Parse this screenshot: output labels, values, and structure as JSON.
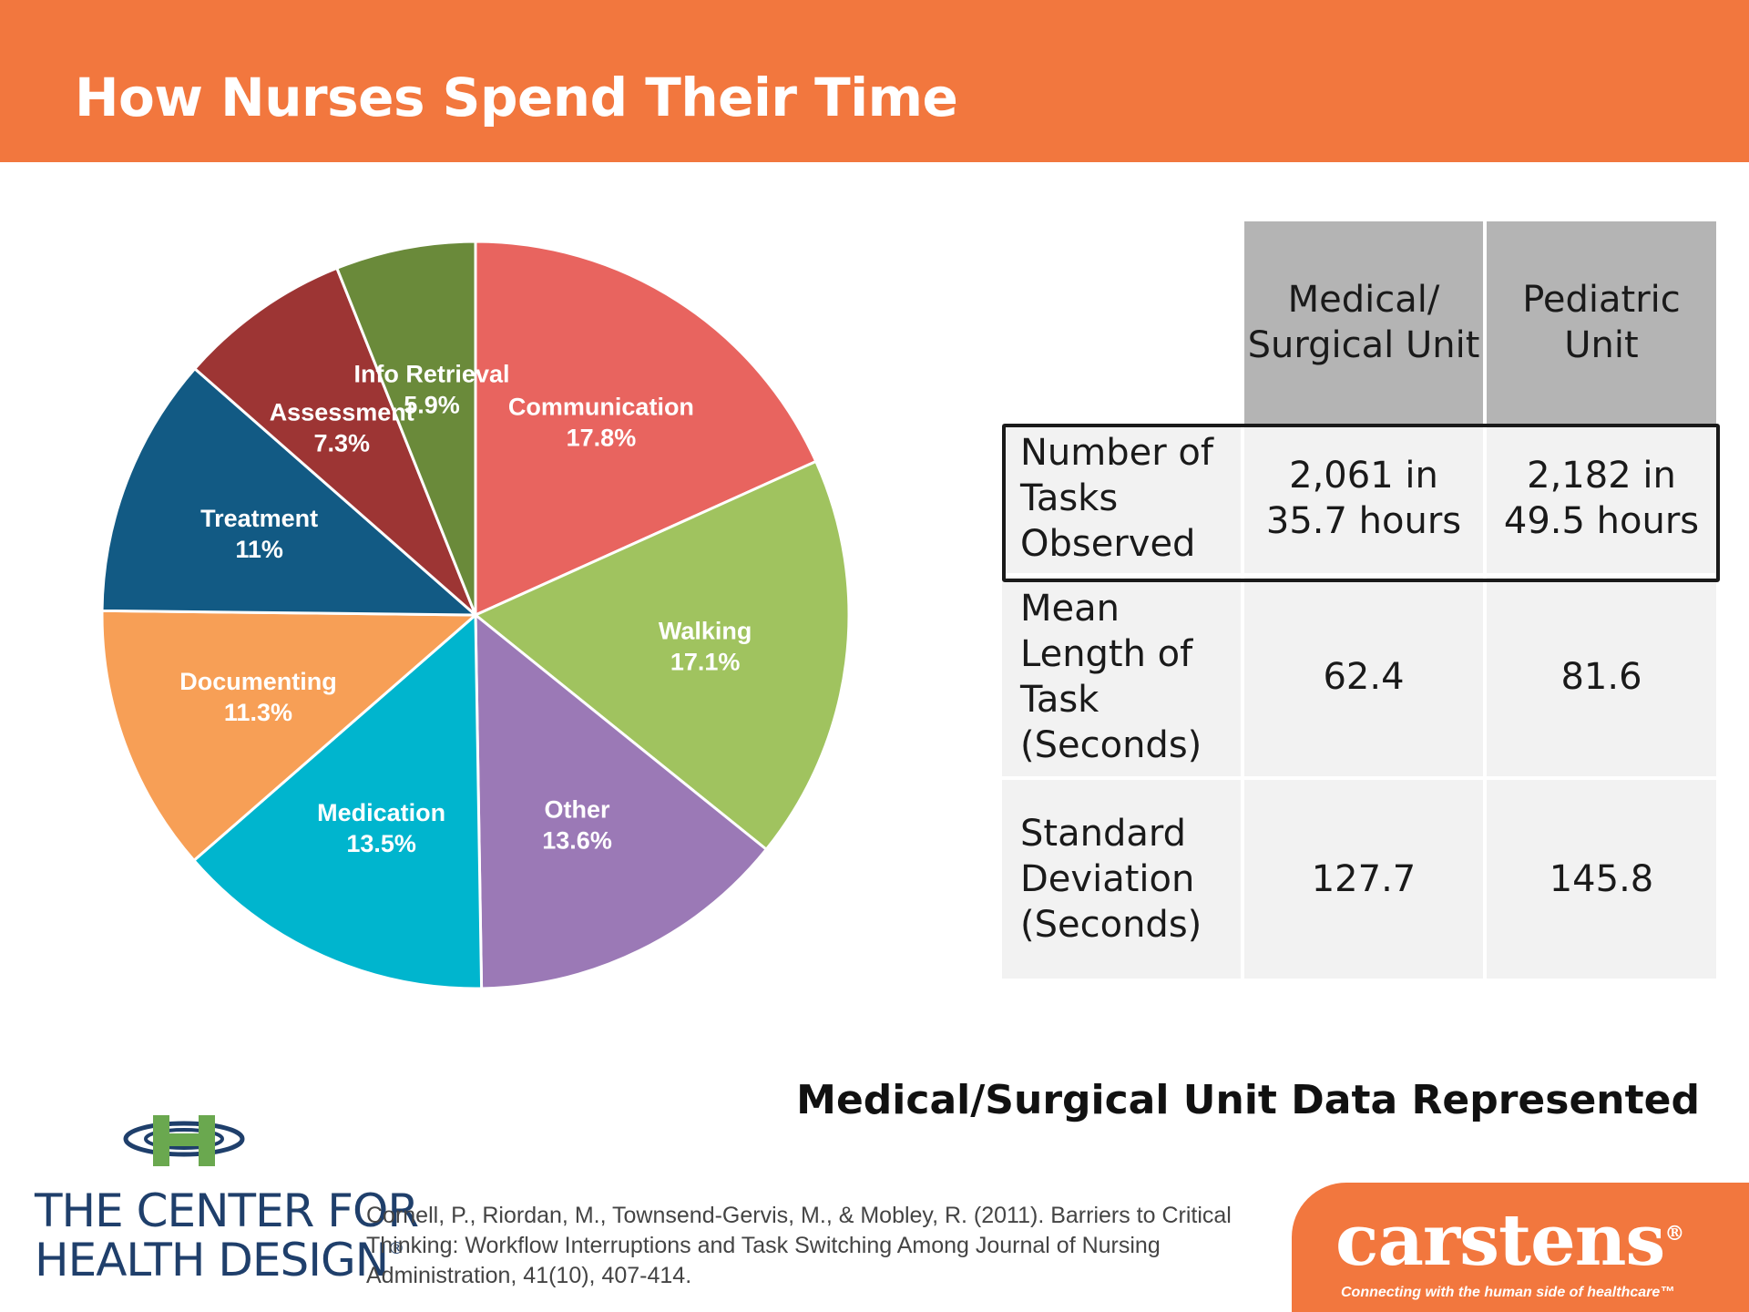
{
  "header": {
    "title": "How Nurses Spend Their Time"
  },
  "chart_data": {
    "type": "pie",
    "categories": [
      "Communication",
      "Walking",
      "Other",
      "Medication",
      "Documenting",
      "Treatment",
      "Assessment",
      "Info Retrieval"
    ],
    "values": [
      17.8,
      17.1,
      13.6,
      13.5,
      11.3,
      11,
      7.3,
      5.9
    ],
    "labels": [
      "17.8%",
      "17.1%",
      "13.6%",
      "13.5%",
      "11.3%",
      "11%",
      "7.3%",
      "5.9%"
    ],
    "colors": [
      "#e8645f",
      "#a0c35f",
      "#9b79b6",
      "#00b5ce",
      "#f79f56",
      "#125a84",
      "#9d3534",
      "#6a8a3a"
    ],
    "legend": "none"
  },
  "table": {
    "columns": [
      "",
      "Medical/ Surgical Unit",
      "Pediatric Unit"
    ],
    "rows": [
      {
        "label": "Number of Tasks Observed",
        "values": [
          "2,061 in 35.7 hours",
          "2,182 in 49.5 hours"
        ]
      },
      {
        "label": "Mean Length of Task (Seconds)",
        "values": [
          "62.4",
          "81.6"
        ]
      },
      {
        "label": "Standard Deviation (Seconds)",
        "values": [
          "127.7",
          "145.8"
        ]
      }
    ]
  },
  "subtitle": "Medical/Surgical Unit Data Represented",
  "logo_center": {
    "line1": "THE CENTER FOR",
    "line2": "HEALTH DESIGN",
    "mark": "®"
  },
  "citation": "Cornell, P., Riordan, M., Townsend-Gervis, M., & Mobley, R. (2011).  Barriers to Critical Thinking: Workflow Interruptions and Task Switching Among Journal of Nursing Administration, 41(10), 407-414.",
  "logo_carstens": {
    "word": "carstens",
    "mark": "®",
    "tagline": "Connecting with the human side of healthcare™"
  },
  "icons": {
    "center_logo": "chd-logo-icon"
  }
}
